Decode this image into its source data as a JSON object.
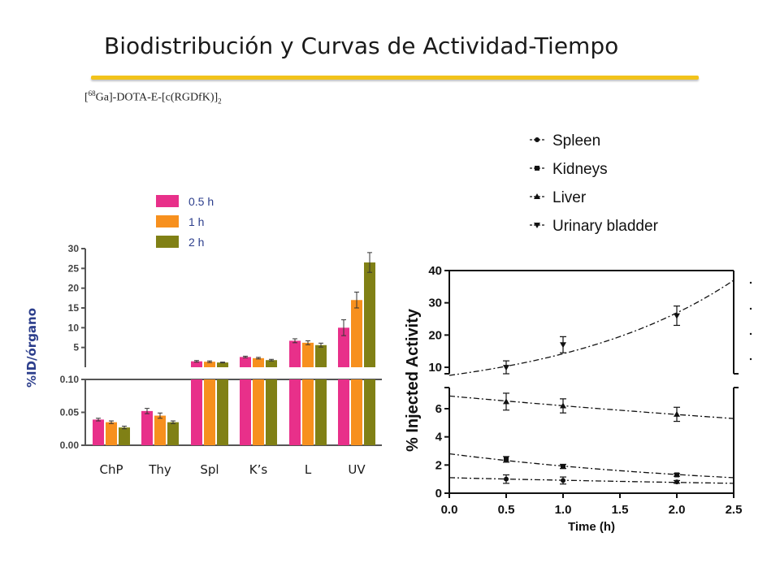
{
  "slide": {
    "title": "Biodistribución y Curvas de Actividad-Tiempo",
    "compound_prefix": "[",
    "compound_isotope": "68",
    "compound_main": "Ga]-DOTA-E-[c(RGDfK)]",
    "compound_sub": "2"
  },
  "colors": {
    "accent_rule": "#f2c31b",
    "series_0_5h": "#e8308a",
    "series_1h": "#f7901e",
    "series_2h": "#808015",
    "label_blue": "#2c3e8c"
  },
  "chart_data": [
    {
      "type": "bar",
      "title": "",
      "ylabel": "%ID/órgano",
      "xlabel": "",
      "categories": [
        "ChP",
        "Thy",
        "Spl",
        "K’s",
        "L",
        "UV"
      ],
      "legend": [
        "0.5 h",
        "1 h",
        "2 h"
      ],
      "legend_position": "top",
      "broken_axis": true,
      "lower_segment": {
        "ylim": [
          0,
          0.1
        ],
        "ticks": [
          "0.00",
          "0.05",
          "0.10"
        ]
      },
      "upper_segment": {
        "ylim": [
          0,
          30
        ],
        "ticks": [
          "5",
          "10",
          "15",
          "20",
          "25",
          "30"
        ]
      },
      "series": [
        {
          "name": "0.5 h",
          "values": [
            0.039,
            0.052,
            1.5,
            2.6,
            6.7,
            10.0
          ],
          "errors": [
            0.002,
            0.004,
            0.2,
            0.2,
            0.5,
            2.0
          ]
        },
        {
          "name": "1 h",
          "values": [
            0.035,
            0.045,
            1.4,
            2.3,
            6.2,
            17.0
          ],
          "errors": [
            0.002,
            0.004,
            0.2,
            0.2,
            0.5,
            2.0
          ]
        },
        {
          "name": "2 h",
          "values": [
            0.027,
            0.035,
            1.2,
            1.8,
            5.6,
            26.5
          ],
          "errors": [
            0.002,
            0.002,
            0.1,
            0.2,
            0.5,
            2.5
          ]
        }
      ]
    },
    {
      "type": "line",
      "title": "",
      "xlabel": "Time (h)",
      "ylabel": "% Injected Activity",
      "xlim": [
        0,
        2.5
      ],
      "x_ticks": [
        "0.0",
        "0.5",
        "1.0",
        "1.5",
        "2.0",
        "2.5"
      ],
      "broken_axis": true,
      "upper_segment": {
        "ylim": [
          8,
          40
        ],
        "ticks": [
          "10",
          "20",
          "30",
          "40"
        ]
      },
      "lower_segment": {
        "ylim": [
          0,
          7.5
        ],
        "ticks": [
          "0",
          "2",
          "4",
          "6"
        ]
      },
      "legend": [
        "Spleen",
        "Kidneys",
        "Liver",
        "Urinary bladder"
      ],
      "legend_position": "top-right",
      "series": [
        {
          "name": "Spleen",
          "marker": "circle",
          "x": [
            0.5,
            1.0,
            2.0
          ],
          "y": [
            1.0,
            0.9,
            0.8
          ],
          "errors": [
            0.3,
            0.25,
            0.1
          ],
          "fit_start": 1.1,
          "fit_end": 0.7
        },
        {
          "name": "Kidneys",
          "marker": "square",
          "x": [
            0.5,
            1.0,
            2.0
          ],
          "y": [
            2.4,
            1.9,
            1.3
          ],
          "errors": [
            0.2,
            0.15,
            0.1
          ],
          "fit_start": 2.8,
          "fit_end": 1.1
        },
        {
          "name": "Liver",
          "marker": "triangle-up",
          "x": [
            0.5,
            1.0,
            2.0
          ],
          "y": [
            6.5,
            6.2,
            5.6
          ],
          "errors": [
            0.6,
            0.5,
            0.5
          ],
          "fit_start": 6.9,
          "fit_end": 5.3
        },
        {
          "name": "Urinary bladder",
          "marker": "triangle-down",
          "x": [
            0.5,
            1.0,
            2.0
          ],
          "y": [
            10.0,
            17.0,
            26.0
          ],
          "errors": [
            2.0,
            2.5,
            3.0
          ],
          "fit_start": 7.5,
          "fit_end": 37.0
        }
      ]
    }
  ]
}
